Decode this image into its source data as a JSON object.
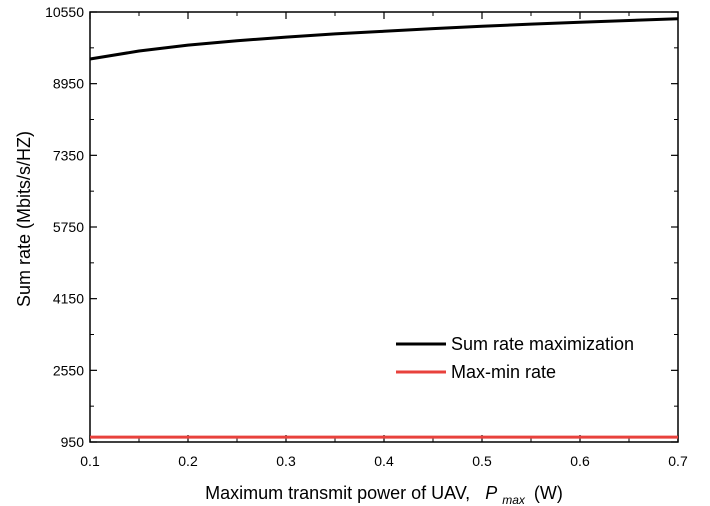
{
  "chart_data": {
    "type": "line",
    "xlabel": "Maximum transmit power of UAV,",
    "xlabel_symbol": "P",
    "xlabel_subscript": "max",
    "xlabel_unit": "(W)",
    "ylabel": "Sum rate (Mbits/s/HZ)",
    "xlim": [
      0.1,
      0.7
    ],
    "ylim": [
      950,
      10550
    ],
    "xticks": [
      "0.1",
      "0.2",
      "0.3",
      "0.4",
      "0.5",
      "0.6",
      "0.7"
    ],
    "yticks": [
      "950",
      "2550",
      "4150",
      "5750",
      "7350",
      "8950",
      "10550"
    ],
    "grid": false,
    "legend_position": "lower-right",
    "series": [
      {
        "name": "Sum rate maximization",
        "color": "#000000",
        "x": [
          0.1,
          0.15,
          0.2,
          0.25,
          0.3,
          0.35,
          0.4,
          0.45,
          0.5,
          0.55,
          0.6,
          0.65,
          0.7
        ],
        "y": [
          9500,
          9680,
          9810,
          9910,
          9990,
          10060,
          10120,
          10180,
          10230,
          10280,
          10320,
          10360,
          10400
        ]
      },
      {
        "name": "Max-min rate",
        "color": "#e8413c",
        "x": [
          0.1,
          0.2,
          0.3,
          0.4,
          0.5,
          0.6,
          0.7
        ],
        "y": [
          1060,
          1060,
          1060,
          1060,
          1060,
          1060,
          1060
        ]
      }
    ]
  }
}
